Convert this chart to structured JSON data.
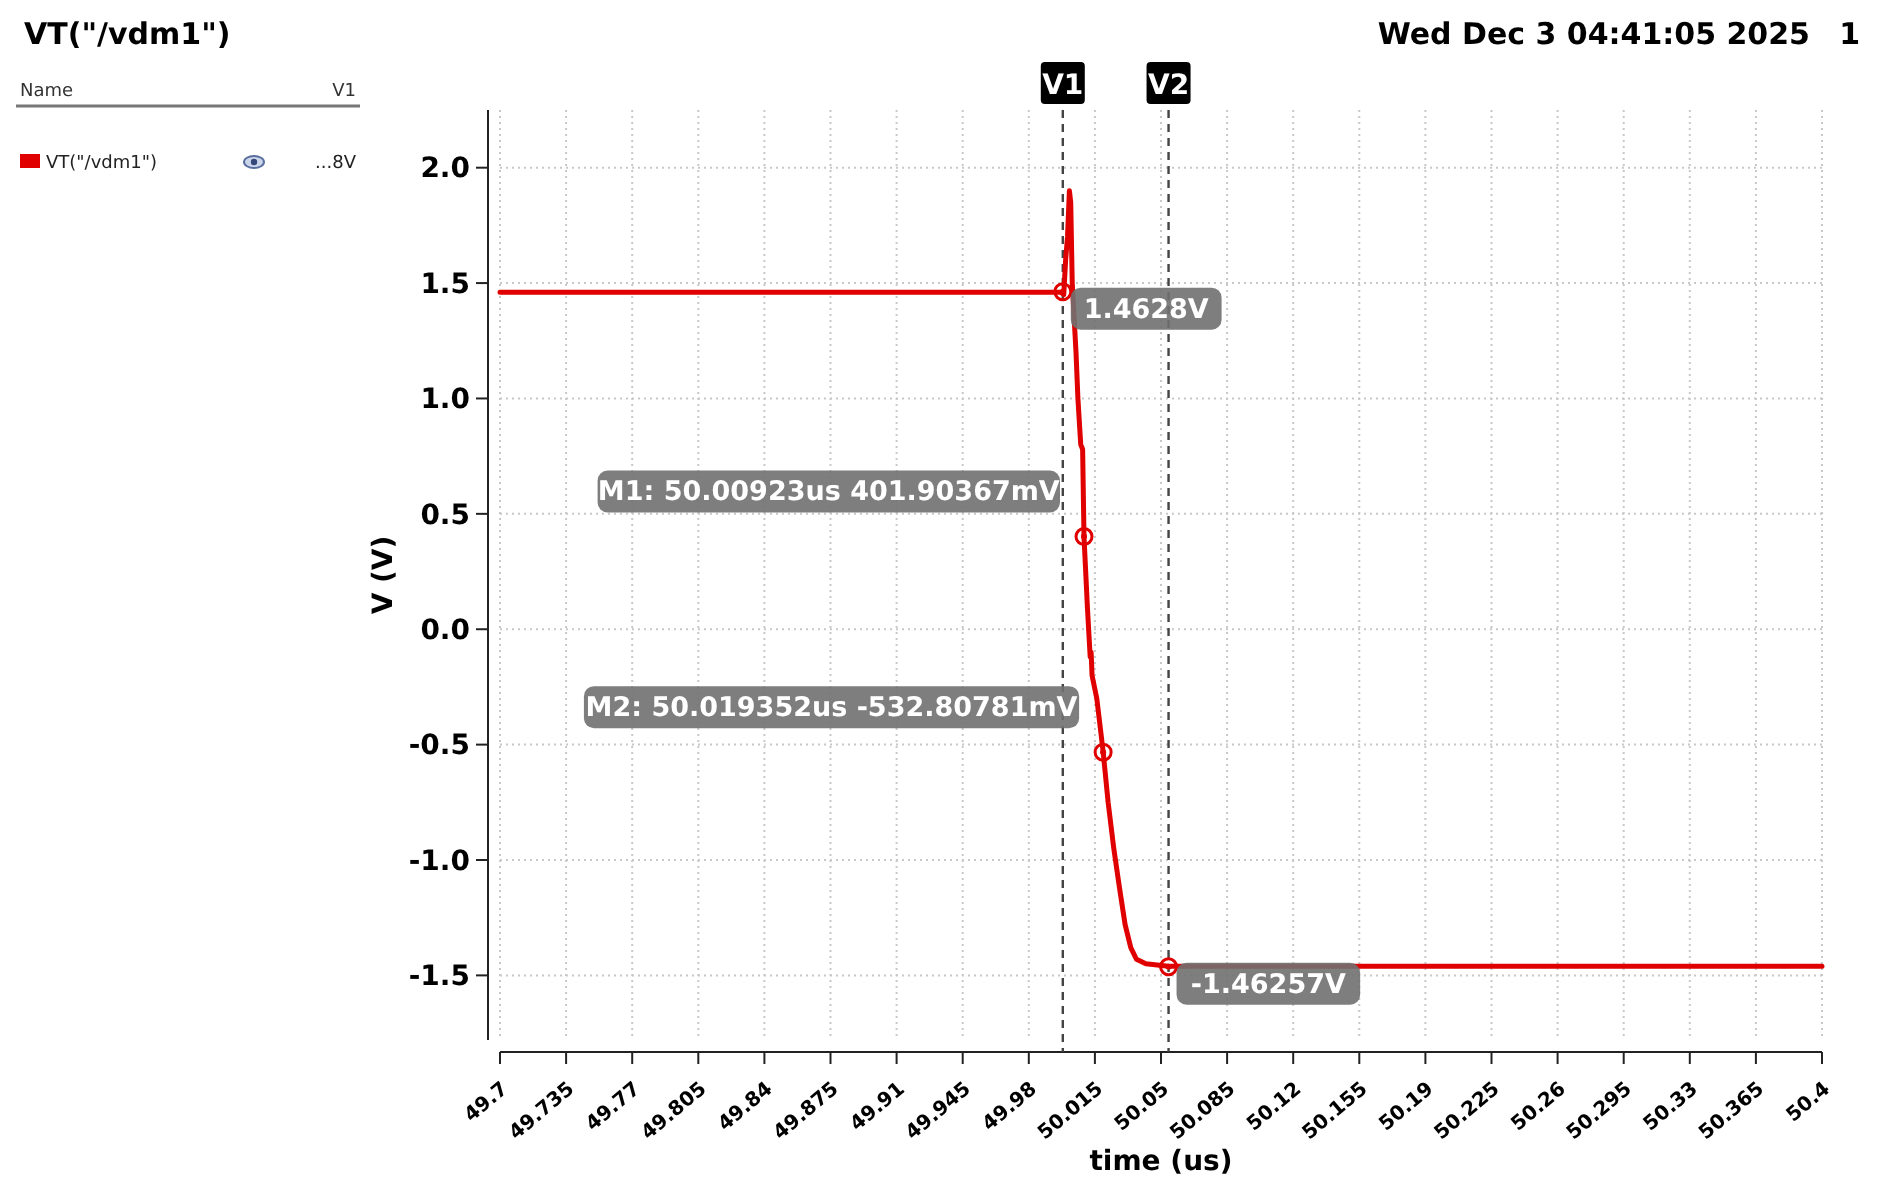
{
  "chart_data": {
    "type": "line",
    "title": "VT(\"/vdm1\")",
    "subtitle": "Wed Dec 3 04:41:05 2025",
    "xlabel": "time (us)",
    "ylabel": "V (V)",
    "xlim": [
      49.7,
      50.4
    ],
    "xticks": [
      49.7,
      49.735,
      49.77,
      49.805,
      49.84,
      49.875,
      49.91,
      49.945,
      49.98,
      50.015,
      50.05,
      50.085,
      50.12,
      50.155,
      50.19,
      50.225,
      50.26,
      50.295,
      50.33,
      50.365,
      50.4
    ],
    "ylim": [
      -1.78,
      2.25
    ],
    "yticks": [
      {
        "value": -1.5,
        "label": "-1.5"
      },
      {
        "value": -1,
        "label": "-1.0"
      },
      {
        "value": -0.5,
        "label": "-0.5"
      },
      {
        "value": 0,
        "label": "0.0"
      },
      {
        "value": 0.5,
        "label": "0.5"
      },
      {
        "value": 1,
        "label": "1.0"
      },
      {
        "value": 1.5,
        "label": "1.5"
      },
      {
        "value": 2,
        "label": "2.0"
      }
    ],
    "grid": true,
    "legend": "left",
    "marker": "none",
    "line_style": "solid",
    "series": [
      {
        "name": "VT(\"/vdm1\")",
        "color": "#e00000",
        "x": [
          49.7,
          49.997,
          49.9985,
          49.9995,
          50.0005,
          50.0015,
          50.0022,
          50.003,
          50.004,
          50.005,
          50.006,
          50.0075,
          50.0085,
          50.00923,
          50.011,
          50.0125,
          50.013,
          50.0135,
          50.016,
          50.019352,
          50.022,
          50.025,
          50.028,
          50.031,
          50.034,
          50.037,
          50.042,
          50.054,
          50.4
        ],
        "values": [
          1.46,
          1.46,
          1.45,
          1.6,
          1.7,
          1.9,
          1.85,
          1.5,
          1.35,
          1.2,
          1.0,
          0.8,
          0.78,
          0.4,
          0.1,
          -0.12,
          -0.1,
          -0.2,
          -0.3,
          -0.53,
          -0.75,
          -0.95,
          -1.12,
          -1.28,
          -1.38,
          -1.43,
          -1.45,
          -1.46,
          -1.46
        ]
      }
    ],
    "ref_lines": [
      {
        "axis": "x",
        "value": 49.998,
        "label": "V1",
        "color": "#444444",
        "line_style": "dashed"
      },
      {
        "axis": "x",
        "value": 50.054,
        "label": "V2",
        "color": "#444444",
        "line_style": "dashed"
      }
    ],
    "annotations": [
      {
        "text": "1.4628V",
        "x": 49.998,
        "y": 1.4628
      },
      {
        "text": "M1: 50.00923us 401.90367mV",
        "x": 50.00923,
        "y": 0.40190367
      },
      {
        "text": "M2: 50.019352us -532.80781mV",
        "x": 50.019352,
        "y": -0.53280781
      },
      {
        "text": "-1.46257V",
        "x": 50.054,
        "y": -1.46257
      },
      "1",
      "Name",
      "V1",
      "...8V"
    ]
  }
}
